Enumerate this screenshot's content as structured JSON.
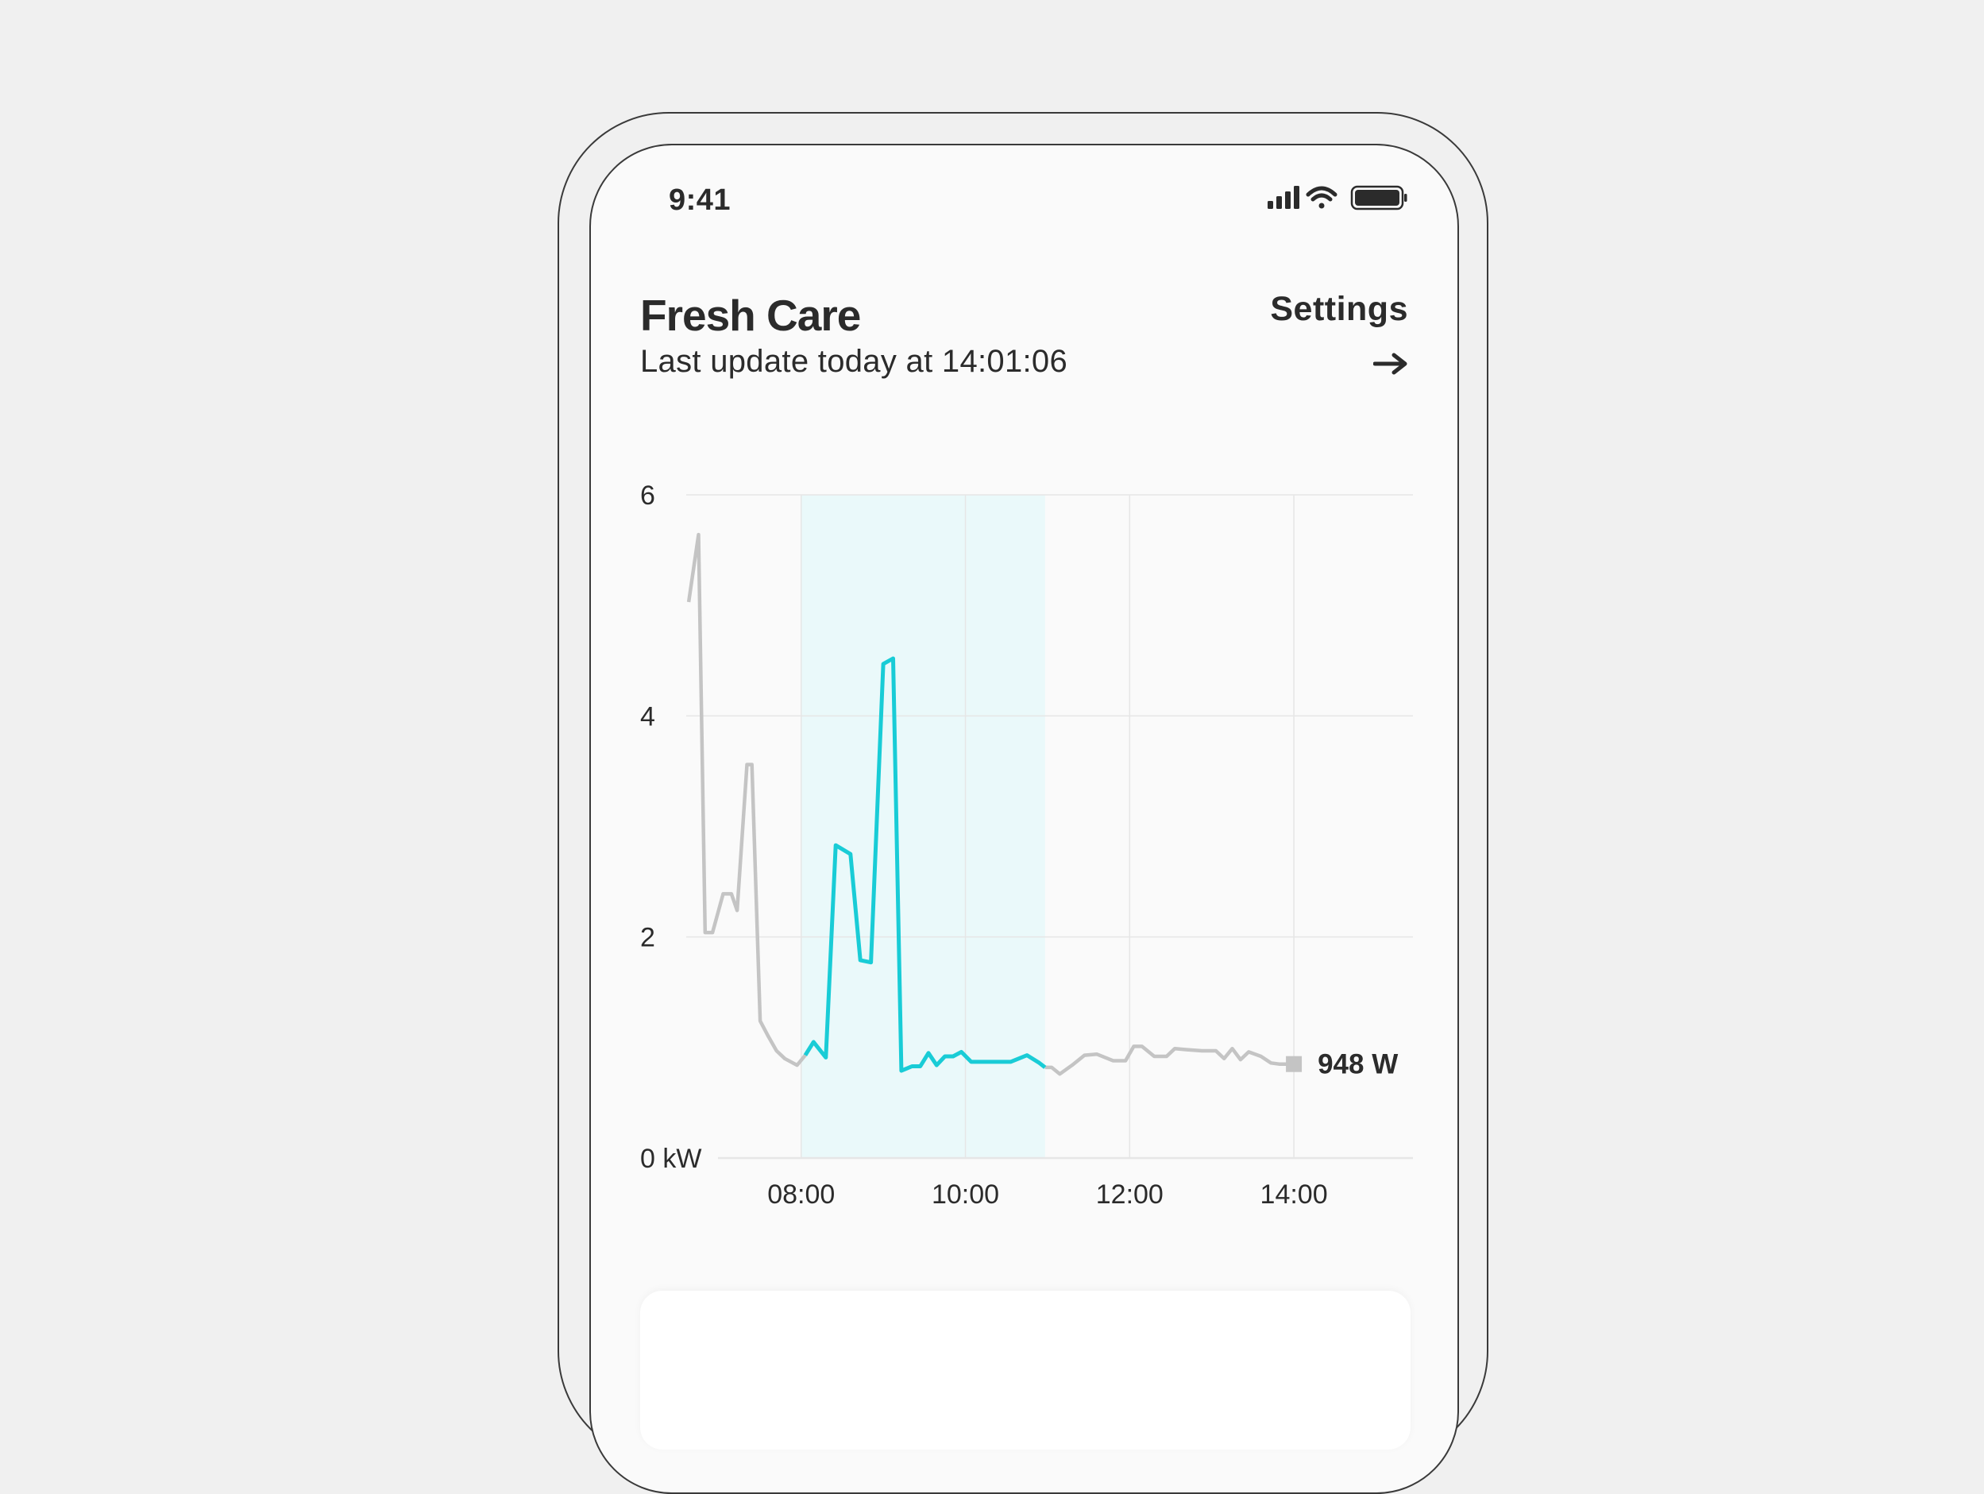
{
  "status_bar": {
    "time": "9:41",
    "icons": [
      "signal-icon",
      "wifi-icon",
      "battery-icon"
    ]
  },
  "header": {
    "title": "Fresh Care",
    "subtitle": "Last update today at 14:01:06",
    "settings_label": "Settings",
    "settings_icon": "arrow-right-icon"
  },
  "colors": {
    "highlight_line": "#19ccd6",
    "highlight_band": "#eaf9fa",
    "base_line": "#c4c4c4",
    "grid": "#e6e6e6",
    "text": "#2b2b2b"
  },
  "chart_data": {
    "type": "line",
    "title": "",
    "xlabel": "",
    "ylabel": "",
    "y_unit": "kW",
    "y_ticks": [
      "0 kW",
      "2",
      "4",
      "6"
    ],
    "y_tick_values": [
      0,
      2,
      4,
      6
    ],
    "ylim": [
      0,
      6
    ],
    "x_ticks": [
      "08:00",
      "10:00",
      "12:00",
      "14:00"
    ],
    "x_tick_values": [
      8,
      10,
      12,
      14
    ],
    "xlim": [
      6.6,
      15.45
    ],
    "grid": true,
    "highlight_range": [
      8,
      10.97
    ],
    "current_value_label": "948 W",
    "series": [
      {
        "x": [
          6.63,
          6.75,
          6.83,
          6.92,
          7.05,
          7.15,
          7.22,
          7.34,
          7.4,
          7.5,
          7.6,
          7.7,
          7.8,
          7.95,
          8.05,
          8.15,
          8.3,
          8.42,
          8.6,
          8.72,
          8.85,
          9.0,
          9.12,
          9.22,
          9.35,
          9.45,
          9.55,
          9.65,
          9.75,
          9.85,
          9.95,
          10.07,
          10.2,
          10.3,
          10.42,
          10.55,
          10.75,
          10.9,
          10.97,
          11.05,
          11.15,
          11.3,
          11.45,
          11.6,
          11.8,
          11.95,
          12.05,
          12.15,
          12.3,
          12.45,
          12.55,
          12.7,
          12.88,
          13.05,
          13.15,
          13.25,
          13.35,
          13.45,
          13.6,
          13.72,
          13.82,
          14.0
        ],
        "y": [
          5.03,
          5.64,
          2.04,
          2.04,
          2.39,
          2.39,
          2.24,
          3.56,
          3.56,
          1.24,
          1.1,
          0.97,
          0.9,
          0.84,
          0.93,
          1.05,
          0.91,
          2.83,
          2.75,
          1.79,
          1.77,
          4.47,
          4.52,
          0.79,
          0.83,
          0.83,
          0.95,
          0.84,
          0.92,
          0.92,
          0.96,
          0.87,
          0.87,
          0.87,
          0.87,
          0.87,
          0.93,
          0.86,
          0.82,
          0.82,
          0.76,
          0.84,
          0.93,
          0.94,
          0.88,
          0.88,
          1.01,
          1.01,
          0.92,
          0.92,
          0.99,
          0.98,
          0.97,
          0.97,
          0.9,
          0.99,
          0.89,
          0.96,
          0.92,
          0.86,
          0.85,
          0.85
        ]
      }
    ]
  }
}
